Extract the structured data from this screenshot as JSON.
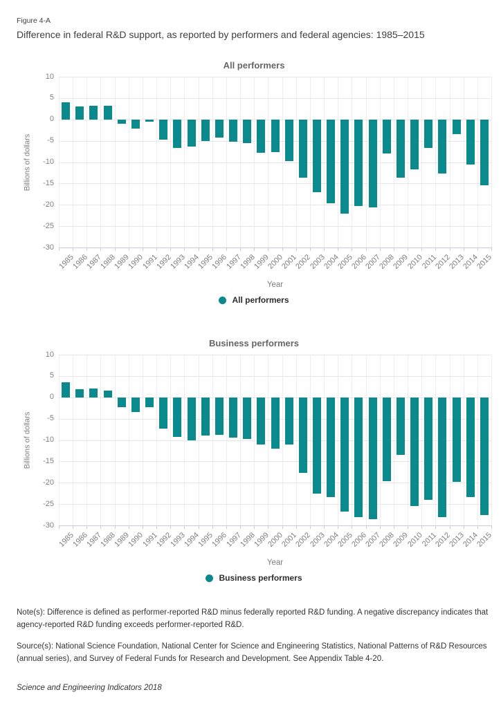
{
  "figure": {
    "label": "Figure 4-A",
    "title": "Difference in federal R&D support, as reported by performers and federal agencies: 1985–2015"
  },
  "colors": {
    "bar": "#0a8a8c",
    "grid": "#e7e7e7",
    "axis": "#c7cbe2",
    "text_gray": "#7f7f7f",
    "text_dark": "#333333"
  },
  "chart_data": [
    {
      "type": "bar",
      "title": "All performers",
      "xlabel": "Year",
      "ylabel": "Billions of dollars",
      "ylim": [
        -30,
        10
      ],
      "yticks": [
        10,
        5,
        0,
        -5,
        -10,
        -15,
        -20,
        -25,
        -30
      ],
      "grid": true,
      "legend": [
        "All performers"
      ],
      "legend_position": "bottom",
      "categories": [
        "1985",
        "1986",
        "1987",
        "1988",
        "1989",
        "1990",
        "1991",
        "1992",
        "1993",
        "1994",
        "1995",
        "1996",
        "1997",
        "1998",
        "1999",
        "2000",
        "2001",
        "2002",
        "2003",
        "2004",
        "2005",
        "2006",
        "2007",
        "2008",
        "2009",
        "2010",
        "2011",
        "2012",
        "2013",
        "2014",
        "2015"
      ],
      "values": [
        4.0,
        3.0,
        3.2,
        3.2,
        -1.0,
        -2.2,
        -0.6,
        -4.7,
        -6.6,
        -6.3,
        -5.0,
        -4.2,
        -5.3,
        -5.5,
        -7.8,
        -7.7,
        -9.8,
        -13.6,
        -17.1,
        -19.7,
        -22.1,
        -20.3,
        -20.6,
        -7.9,
        -13.6,
        -11.7,
        -6.6,
        -12.7,
        -3.5,
        -10.5,
        -15.4
      ]
    },
    {
      "type": "bar",
      "title": "Business performers",
      "xlabel": "Year",
      "ylabel": "Billions of dollars",
      "ylim": [
        -30,
        10
      ],
      "yticks": [
        10,
        5,
        0,
        -5,
        -10,
        -15,
        -20,
        -25,
        -30
      ],
      "grid": true,
      "legend": [
        "Business performers"
      ],
      "legend_position": "bottom",
      "categories": [
        "1985",
        "1986",
        "1987",
        "1988",
        "1989",
        "1990",
        "1991",
        "1992",
        "1993",
        "1994",
        "1995",
        "1996",
        "1997",
        "1998",
        "1999",
        "2000",
        "2001",
        "2002",
        "2003",
        "2004",
        "2005",
        "2006",
        "2007",
        "2008",
        "2009",
        "2010",
        "2011",
        "2012",
        "2013",
        "2014",
        "2015"
      ],
      "values": [
        3.5,
        1.9,
        2.0,
        1.5,
        -2.3,
        -3.4,
        -2.3,
        -7.3,
        -9.3,
        -10.1,
        -8.9,
        -8.8,
        -9.5,
        -9.7,
        -11.1,
        -12.0,
        -11.0,
        -17.7,
        -22.5,
        -23.3,
        -26.7,
        -28.1,
        -28.5,
        -19.7,
        -13.4,
        -25.5,
        -24.0,
        -28.1,
        -19.8,
        -23.4,
        -27.5
      ]
    }
  ],
  "footer": {
    "note": "Note(s): Difference is defined as performer-reported R&D minus federally reported R&D funding. A negative discrepancy indicates that agency-reported R&D funding exceeds performer-reported R&D.",
    "source": "Source(s): National Science Foundation, National Center for Science and Engineering Statistics, National Patterns of R&D Resources (annual series), and Survey of Federal Funds for Research and Development. See Appendix Table 4-20.",
    "attribution": "Science and Engineering Indicators 2018"
  }
}
